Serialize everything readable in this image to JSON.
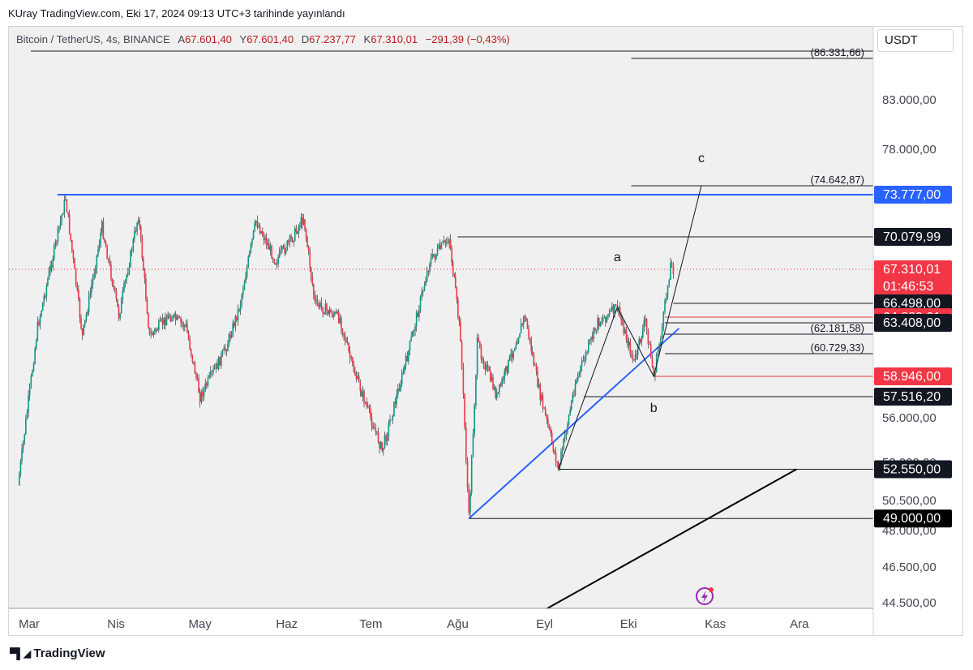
{
  "header": {
    "published": "KUray TradingView.com, Eki 17, 2024 09:13 UTC+3 tarihinde yayınlandı"
  },
  "legend": {
    "symbol": "Bitcoin / TetherUS, 4s, BINANCE",
    "open_label": "A",
    "open": "67.601,40",
    "high_label": "Y",
    "high": "67.601,40",
    "low_label": "D",
    "low": "67.237,77",
    "close_label": "K",
    "close": "67.310,01",
    "change": "−291,39 (−0,43%)"
  },
  "currency": "USDT",
  "brand": {
    "icon": "tradingview-logo-icon",
    "name": "TradingView"
  },
  "chart_data": {
    "type": "candlestick",
    "x_ticks": [
      "Mar",
      "Nis",
      "May",
      "Haz",
      "Tem",
      "Ağu",
      "Eyl",
      "Eki",
      "Kas",
      "Ara"
    ],
    "y_ticks": [
      {
        "value": 83000,
        "label": "83.000,00"
      },
      {
        "value": 78000,
        "label": "78.000,00"
      },
      {
        "value": 56000,
        "label": "56.000,00"
      },
      {
        "value": 53000,
        "label": "53.000,00"
      },
      {
        "value": 50500,
        "label": "50.500,00"
      },
      {
        "value": 48000,
        "label": "48.000,00"
      },
      {
        "value": 46500,
        "label": "46.500,00"
      },
      {
        "value": 44500,
        "label": "44.500,00"
      }
    ],
    "price_path": [
      {
        "date": "2024-02-26",
        "price": 51500
      },
      {
        "date": "2024-03-04",
        "price": 63000
      },
      {
        "date": "2024-03-14",
        "price": 73500
      },
      {
        "date": "2024-03-20",
        "price": 62000
      },
      {
        "date": "2024-03-27",
        "price": 71000
      },
      {
        "date": "2024-04-02",
        "price": 65000
      },
      {
        "date": "2024-04-09",
        "price": 72000
      },
      {
        "date": "2024-04-13",
        "price": 62000
      },
      {
        "date": "2024-04-20",
        "price": 65000
      },
      {
        "date": "2024-04-26",
        "price": 63000
      },
      {
        "date": "2024-05-01",
        "price": 57500
      },
      {
        "date": "2024-05-10",
        "price": 61000
      },
      {
        "date": "2024-05-15",
        "price": 66000
      },
      {
        "date": "2024-05-21",
        "price": 71500
      },
      {
        "date": "2024-05-28",
        "price": 68000
      },
      {
        "date": "2024-06-03",
        "price": 70000
      },
      {
        "date": "2024-06-07",
        "price": 71800
      },
      {
        "date": "2024-06-11",
        "price": 66500
      },
      {
        "date": "2024-06-20",
        "price": 64500
      },
      {
        "date": "2024-06-24",
        "price": 60000
      },
      {
        "date": "2024-07-05",
        "price": 53800
      },
      {
        "date": "2024-07-14",
        "price": 60500
      },
      {
        "date": "2024-07-22",
        "price": 68000
      },
      {
        "date": "2024-07-29",
        "price": 70000
      },
      {
        "date": "2024-08-02",
        "price": 62000
      },
      {
        "date": "2024-08-05",
        "price": 49000
      },
      {
        "date": "2024-08-08",
        "price": 61500
      },
      {
        "date": "2024-08-15",
        "price": 57500
      },
      {
        "date": "2024-08-25",
        "price": 65000
      },
      {
        "date": "2024-08-30",
        "price": 58000
      },
      {
        "date": "2024-09-06",
        "price": 52550
      },
      {
        "date": "2024-09-12",
        "price": 58500
      },
      {
        "date": "2024-09-20",
        "price": 63500
      },
      {
        "date": "2024-09-27",
        "price": 66000
      },
      {
        "date": "2024-10-03",
        "price": 60000
      },
      {
        "date": "2024-10-07",
        "price": 64000
      },
      {
        "date": "2024-10-10",
        "price": 58946
      },
      {
        "date": "2024-10-13",
        "price": 63000
      },
      {
        "date": "2024-10-16",
        "price": 67800
      },
      {
        "date": "2024-10-17",
        "price": 67310
      }
    ],
    "levels": [
      {
        "value": 86331.66,
        "label": "(86.331,66)",
        "style": "target"
      },
      {
        "value": 74642.87,
        "label": "(74.642,87)",
        "style": "target"
      },
      {
        "value": 73777.0,
        "label": "73.777,00",
        "style": "blue"
      },
      {
        "value": 70079.99,
        "label": "70.079,99",
        "style": "dark"
      },
      {
        "value": 67310.01,
        "label": "67.310,01",
        "style": "last"
      },
      {
        "value": 66498.0,
        "label": "66.498,00",
        "style": "dark"
      },
      {
        "value": 64800.01,
        "label": "64.800,01",
        "style": "red"
      },
      {
        "value": 62181.58,
        "label": "(62.181,58)",
        "style": "target"
      },
      {
        "value": 63408.0,
        "label": "63.408,00",
        "style": "dark"
      },
      {
        "value": 60729.33,
        "label": "(60.729,33)",
        "style": "target"
      },
      {
        "value": 58946.0,
        "label": "58.946,00",
        "style": "red"
      },
      {
        "value": 57516.2,
        "label": "57.516,20",
        "style": "dark"
      },
      {
        "value": 52550.0,
        "label": "52.550,00",
        "style": "dark"
      },
      {
        "value": 49000.0,
        "label": "49.000,00",
        "style": "black"
      }
    ],
    "countdown": "01:46:53",
    "wave_labels": [
      {
        "text": "a",
        "date": "2024-09-27",
        "price": 68000
      },
      {
        "text": "b",
        "date": "2024-10-10",
        "price": 56400
      },
      {
        "text": "c",
        "date": "2024-10-27",
        "price": 76800
      }
    ],
    "horizontal_resistance": {
      "price": 73777,
      "from": "2024-03-14"
    },
    "support_trendline": [
      {
        "date": "2024-08-05",
        "price": 49000
      },
      {
        "date": "2024-10-19",
        "price": 62800
      }
    ],
    "lower_trendline": [
      {
        "date": "2024-09-02",
        "price": 44500
      },
      {
        "date": "2024-11-30",
        "price": 52550
      }
    ],
    "abc_path": [
      {
        "date": "2024-09-06",
        "price": 52550
      },
      {
        "date": "2024-09-27",
        "price": 66000
      },
      {
        "date": "2024-10-10",
        "price": 58946
      },
      {
        "date": "2024-10-27",
        "price": 74642.87
      }
    ]
  }
}
